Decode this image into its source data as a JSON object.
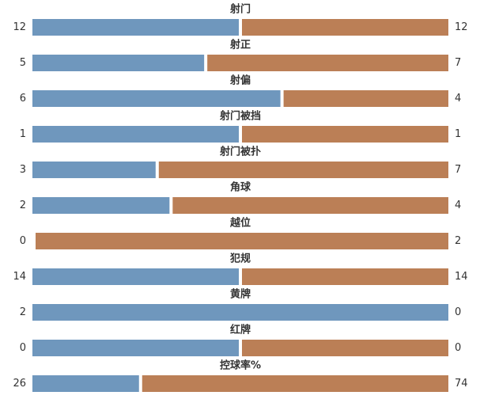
{
  "colors": {
    "home": "#6f97bd",
    "away": "#bb7f56"
  },
  "chart_data": {
    "type": "bar",
    "orientation": "horizontal-split",
    "categories": [
      "射门",
      "射正",
      "射偏",
      "射门被挡",
      "射门被扑",
      "角球",
      "越位",
      "犯规",
      "黄牌",
      "红牌",
      "控球率%"
    ],
    "series": [
      {
        "values": [
          12,
          5,
          6,
          1,
          3,
          2,
          0,
          14,
          2,
          0,
          26
        ]
      },
      {
        "values": [
          12,
          7,
          4,
          1,
          7,
          4,
          2,
          14,
          0,
          0,
          74
        ]
      }
    ],
    "legend": "none",
    "grid": false
  }
}
